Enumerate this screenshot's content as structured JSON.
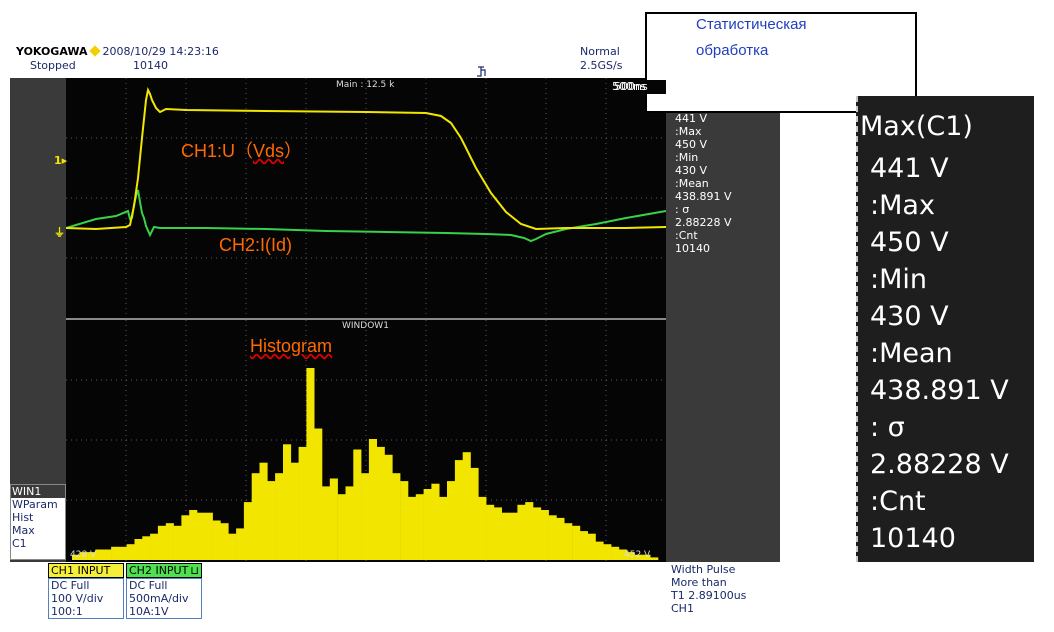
{
  "header": {
    "brand": "YOKOGAWA",
    "datetime": "2008/10/29 14:23:16",
    "status": "Stopped",
    "count": "10140",
    "trigger_mode": "Normal",
    "sample_rate": "2.5GS/s",
    "trigger_icon": "trigger-icon"
  },
  "screen": {
    "main_label": "Main : 12.5 k",
    "timebase": "500ns",
    "window_label": "WINDOW1",
    "hist_left": "428 V",
    "hist_right": "452 V"
  },
  "annotations": {
    "ch1_prefix": "CH1:U（",
    "ch1_vds": "Vds",
    "ch1_suffix": "）",
    "ch2": "CH2:I(Id)",
    "histogram": "Histogram"
  },
  "stat_box": {
    "line1": "Статистическая",
    "line2": "обработка"
  },
  "measurements": {
    "items": [
      "441 V",
      ":Max",
      "450 V",
      ":Min",
      "430 V",
      ":Mean",
      "438.891 V",
      ": σ",
      "2.88228 V",
      ":Cnt",
      "10140"
    ]
  },
  "zoom_panel": {
    "title": "Max(C1)",
    "items": [
      "441 V",
      ":Max",
      "450 V",
      ":Min",
      "430 V",
      ":Mean",
      "438.891 V",
      ": σ",
      "2.88228 V",
      ":Cnt",
      "10140"
    ]
  },
  "win1": {
    "title": "WIN1",
    "lines": [
      "WParam",
      "Hist",
      "Max",
      "C1"
    ]
  },
  "ch1_info": {
    "title": "CH1 INPUT",
    "lines": [
      "DC Full",
      "100 V/div",
      "100:1"
    ]
  },
  "ch2_info": {
    "title": "CH2 INPUT",
    "lines": [
      "DC Full",
      "500mA/div",
      "10A:1V"
    ]
  },
  "trigger_info": {
    "lines": [
      "Width Pulse",
      "More than",
      "T1   2.89100us",
      "CH1"
    ]
  },
  "colors": {
    "ch1": "#f2e600",
    "ch2": "#36d24a",
    "annotation": "#ff6a00",
    "ch1_box": "#f5ef3a",
    "ch2_box": "#4fe04f"
  },
  "chart_data": {
    "type": "bar",
    "title": "Histogram",
    "xlabel": "",
    "ylabel": "",
    "xlim": [
      428,
      452
    ],
    "values": [
      2,
      3,
      3,
      4,
      4,
      5,
      5,
      6,
      8,
      9,
      10,
      13,
      14,
      13,
      17,
      19,
      18,
      18,
      15,
      14,
      10,
      12,
      22,
      33,
      37,
      30,
      33,
      44,
      37,
      43,
      73,
      50,
      28,
      31,
      25,
      28,
      42,
      33,
      46,
      43,
      40,
      33,
      30,
      24,
      25,
      27,
      29,
      24,
      30,
      38,
      41,
      35,
      24,
      21,
      20,
      18,
      18,
      21,
      22,
      20,
      19,
      17,
      16,
      14,
      13,
      11,
      10,
      7,
      6,
      5,
      4,
      3,
      2,
      2,
      1
    ]
  }
}
